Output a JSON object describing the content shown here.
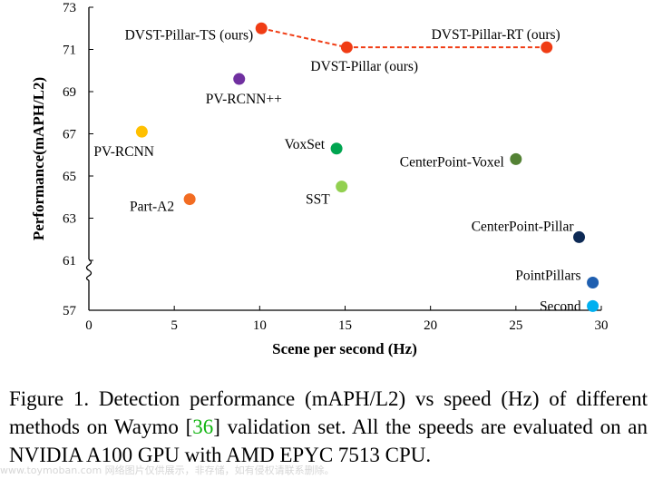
{
  "chart_data": {
    "type": "scatter",
    "title": "",
    "xlabel": "Scene per second (Hz)",
    "ylabel": "Performance(mAPH/L2)",
    "xlim": [
      0,
      30
    ],
    "ylim": [
      57,
      73
    ],
    "axis_break_y": "between 57 and 61",
    "x_ticks": [
      "0",
      "5",
      "10",
      "15",
      "20",
      "25",
      "30"
    ],
    "y_ticks": [
      "57",
      "61",
      "63",
      "65",
      "67",
      "69",
      "71",
      "73"
    ],
    "grid": false,
    "legend": "none",
    "points": [
      {
        "name": "DVST-Pillar-TS (ours)",
        "x": 10.1,
        "y": 72.0,
        "color": "#f03c14"
      },
      {
        "name": "DVST-Pillar (ours)",
        "x": 15.1,
        "y": 71.1,
        "color": "#f03c14"
      },
      {
        "name": "DVST-Pillar-RT (ours)",
        "x": 26.8,
        "y": 71.1,
        "color": "#f03c14"
      },
      {
        "name": "PV-RCNN++",
        "x": 8.8,
        "y": 69.6,
        "color": "#7030a0"
      },
      {
        "name": "PV-RCNN",
        "x": 3.1,
        "y": 67.1,
        "color": "#ffc000"
      },
      {
        "name": "VoxSet",
        "x": 14.5,
        "y": 66.3,
        "color": "#00a550"
      },
      {
        "name": "CenterPoint-Voxel",
        "x": 25.0,
        "y": 65.8,
        "color": "#548235"
      },
      {
        "name": "SST",
        "x": 14.8,
        "y": 64.5,
        "color": "#92d050"
      },
      {
        "name": "Part-A2",
        "x": 5.9,
        "y": 63.9,
        "color": "#f26c22"
      },
      {
        "name": "CenterPoint-Pillar",
        "x": 28.7,
        "y": 62.1,
        "color": "#0d2a55"
      },
      {
        "name": "PointPillars",
        "x": 29.5,
        "y": 60.3,
        "color": "#1f5fb0"
      },
      {
        "name": "Second",
        "x": 29.5,
        "y": 57.5,
        "color": "#00b0f0"
      }
    ],
    "connector": {
      "series": [
        "DVST-Pillar-TS (ours)",
        "DVST-Pillar (ours)",
        "DVST-Pillar-RT (ours)"
      ],
      "style": "dashed",
      "color": "#f03c14"
    }
  },
  "caption": {
    "line1": "Figure 1.  Detection performance (mAPH/L2) vs speed (Hz) of",
    "line2_before_ref": "different methods on Waymo [",
    "ref_number": "36",
    "line2_after_ref": "] validation set. All the speeds are",
    "line3": "evaluated on an NVIDIA A100 GPU with AMD EPYC 7513 CPU."
  },
  "watermark": "www.toymoban.com 网络图片仅供展示，非存储，如有侵权请联系删除。"
}
